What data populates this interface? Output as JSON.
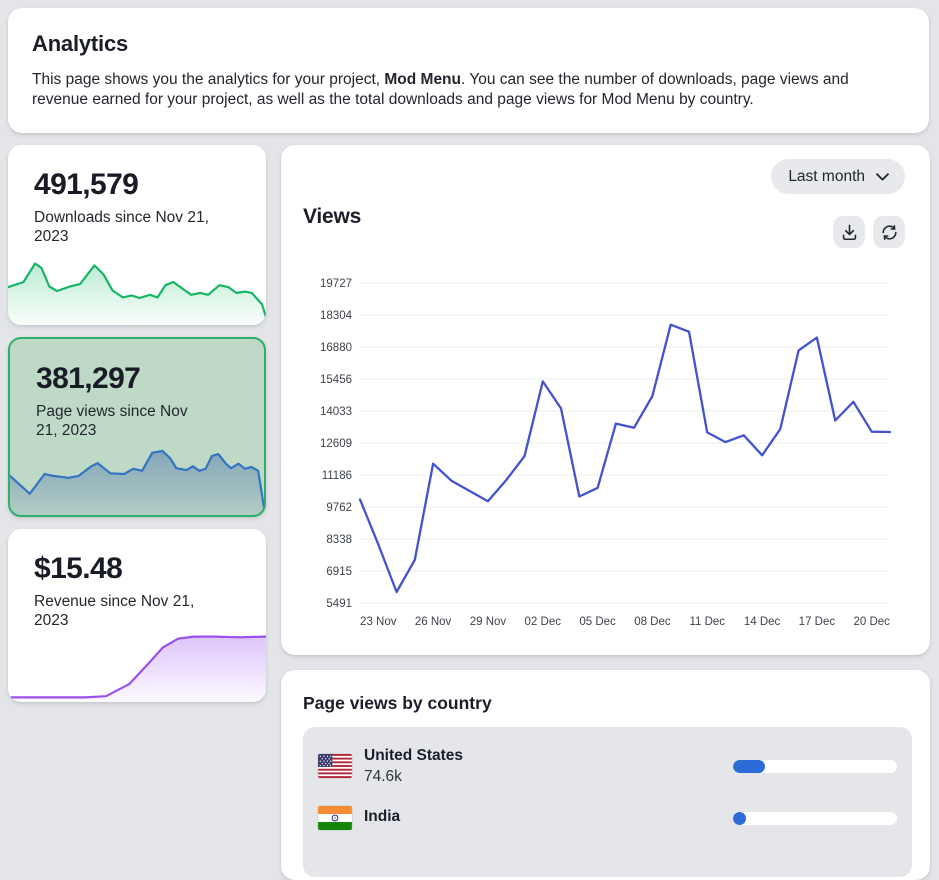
{
  "header": {
    "title": "Analytics",
    "description": {
      "before": "This page shows you the analytics for your project, ",
      "project_name": "Mod Menu",
      "after": ". You can see the number of downloads, page views and revenue earned for your project, as well as the total downloads and page views for Mod Menu by country."
    }
  },
  "stat_cards": [
    {
      "value": "491,579",
      "label": "Downloads since Nov 21, 2023",
      "selected": false
    },
    {
      "value": "381,297",
      "label": "Page views since Nov 21, 2023",
      "selected": true
    },
    {
      "value": "$15.48",
      "label": "Revenue since Nov 21, 2023",
      "selected": false
    }
  ],
  "views_panel": {
    "title": "Views",
    "range_button": "Last month"
  },
  "country_panel": {
    "title": "Page views by country",
    "rows": [
      {
        "country": "United States",
        "value": "74.6k",
        "flag": "us-flag"
      },
      {
        "country": "India",
        "value": "",
        "flag": "india-flag"
      }
    ]
  },
  "colors": {
    "selected_card_bg": "#bfd9c7",
    "selected_card_border": "#2cb06c",
    "main_line": "#4353cb",
    "bar_fill": "#2b6cd9",
    "grid": "#ebecef",
    "axis_text": "#3e424b"
  },
  "chart_data": [
    {
      "id": "views-over-time",
      "type": "line",
      "title": "Views",
      "range": "Last month",
      "x_tick_labels": [
        "23 Nov",
        "26 Nov",
        "29 Nov",
        "02 Dec",
        "05 Dec",
        "08 Dec",
        "11 Dec",
        "14 Dec",
        "17 Dec",
        "20 Dec"
      ],
      "x_tick_indices": [
        1,
        4,
        7,
        10,
        13,
        16,
        19,
        22,
        25,
        28
      ],
      "y_ticks": [
        5491,
        6915,
        8338,
        9762,
        11186,
        12609,
        14033,
        15456,
        16880,
        18304,
        19727
      ],
      "ylim": [
        5491,
        19727
      ],
      "grid": "horizontal-only",
      "legend": "none",
      "line_color": "#4353cb",
      "series": [
        {
          "name": "Page views",
          "values": [
            10100,
            8100,
            5980,
            7410,
            11690,
            10930,
            10475,
            10020,
            10960,
            12020,
            15350,
            14150,
            10230,
            10610,
            13470,
            13290,
            14700,
            17870,
            17560,
            13080,
            12650,
            12950,
            12060,
            13230,
            16730,
            17300,
            13610,
            14440,
            13110,
            13100
          ]
        }
      ]
    },
    {
      "id": "downloads-sparkline",
      "type": "area",
      "normalized": true,
      "line_color": "#16b565",
      "fill_top": "rgba(27,190,106,0.30)",
      "fill_bottom": "rgba(27,190,106,0.02)",
      "x": [
        0,
        0.06,
        0.105,
        0.13,
        0.16,
        0.19,
        0.24,
        0.28,
        0.335,
        0.37,
        0.405,
        0.445,
        0.48,
        0.51,
        0.55,
        0.58,
        0.61,
        0.64,
        0.675,
        0.71,
        0.745,
        0.775,
        0.82,
        0.855,
        0.885,
        0.92,
        0.945,
        0.985,
        1
      ],
      "values": [
        56,
        64,
        93,
        86,
        57,
        50,
        57,
        61,
        90,
        76,
        51,
        40,
        43,
        39,
        44,
        40,
        59,
        64,
        54,
        44,
        47,
        44,
        59,
        56,
        47,
        49,
        47,
        29,
        9
      ]
    },
    {
      "id": "page-views-sparkline",
      "type": "area",
      "normalized": true,
      "line_color": "#3573c2",
      "fill_top": "rgba(45,90,165,0.40)",
      "fill_bottom": "rgba(45,90,165,0.10)",
      "x": [
        0,
        0.078,
        0.136,
        0.17,
        0.23,
        0.27,
        0.32,
        0.345,
        0.395,
        0.45,
        0.485,
        0.52,
        0.56,
        0.6,
        0.63,
        0.655,
        0.695,
        0.72,
        0.745,
        0.77,
        0.795,
        0.82,
        0.85,
        0.87,
        0.9,
        0.925,
        0.95,
        0.977,
        1
      ],
      "values": [
        58,
        30,
        61,
        58,
        55,
        58,
        73,
        78,
        62,
        61,
        69,
        66,
        94,
        97,
        86,
        70,
        67,
        73,
        66,
        69,
        89,
        92,
        77,
        70,
        77,
        69,
        72,
        66,
        8
      ]
    },
    {
      "id": "revenue-sparkline",
      "type": "area",
      "normalized": true,
      "line_color": "#9b50ee",
      "fill_top": "rgba(160,85,245,0.34)",
      "fill_bottom": "rgba(160,85,245,0.03)",
      "x": [
        0,
        0.3,
        0.38,
        0.47,
        0.54,
        0.6,
        0.66,
        0.72,
        0.8,
        0.9,
        1
      ],
      "values": [
        4,
        4,
        6,
        25,
        55,
        82,
        96,
        99,
        99,
        98,
        99
      ]
    },
    {
      "id": "page-views-by-country",
      "type": "bar",
      "categories": [
        "United States",
        "India"
      ],
      "value_labels": [
        "74.6k",
        null
      ],
      "bar_fractions": [
        0.196,
        0.08
      ],
      "bar_color": "#2b6cd9"
    }
  ]
}
